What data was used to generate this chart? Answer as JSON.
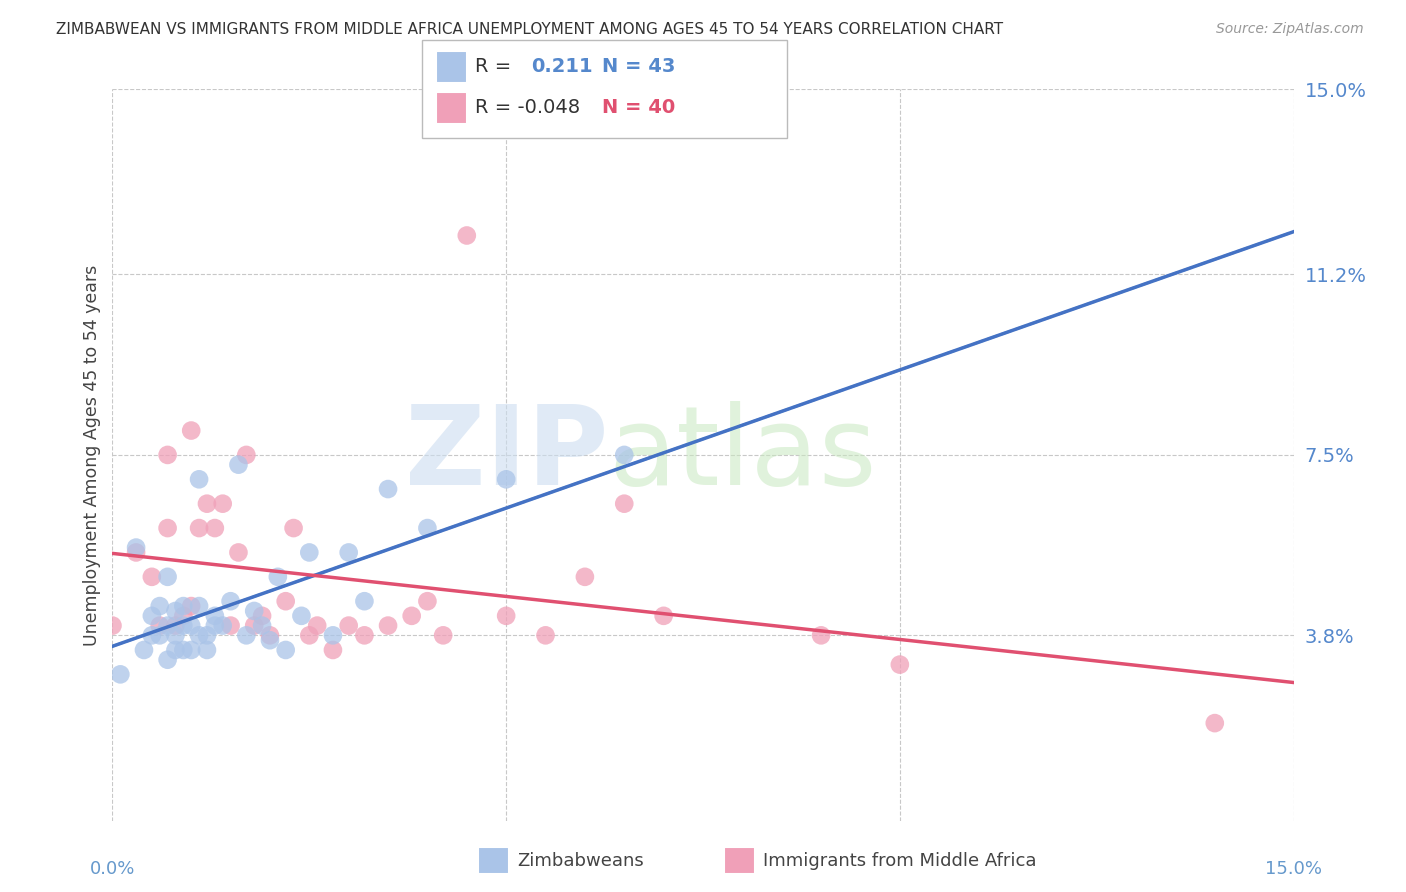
{
  "title": "ZIMBABWEAN VS IMMIGRANTS FROM MIDDLE AFRICA UNEMPLOYMENT AMONG AGES 45 TO 54 YEARS CORRELATION CHART",
  "source": "Source: ZipAtlas.com",
  "ylabel": "Unemployment Among Ages 45 to 54 years",
  "xlim": [
    0.0,
    0.15
  ],
  "ylim": [
    0.0,
    0.15
  ],
  "ytick_labels_right": [
    "15.0%",
    "11.2%",
    "7.5%",
    "3.8%"
  ],
  "ytick_positions_right": [
    0.15,
    0.112,
    0.075,
    0.038
  ],
  "grid_color": "#c8c8c8",
  "background_color": "#ffffff",
  "zim_color": "#aac4e8",
  "imm_color": "#f0a0b8",
  "zim_line_color": "#4472c4",
  "imm_line_color": "#e05070",
  "zim_R": 0.211,
  "zim_N": 43,
  "imm_R": -0.048,
  "imm_N": 40,
  "zimbabweans_x": [
    0.001,
    0.003,
    0.004,
    0.005,
    0.005,
    0.006,
    0.006,
    0.007,
    0.007,
    0.007,
    0.008,
    0.008,
    0.008,
    0.009,
    0.009,
    0.009,
    0.01,
    0.01,
    0.011,
    0.011,
    0.011,
    0.012,
    0.012,
    0.013,
    0.013,
    0.014,
    0.015,
    0.016,
    0.017,
    0.018,
    0.019,
    0.02,
    0.021,
    0.022,
    0.024,
    0.025,
    0.028,
    0.03,
    0.032,
    0.035,
    0.04,
    0.05,
    0.065
  ],
  "zimbabweans_y": [
    0.03,
    0.056,
    0.035,
    0.038,
    0.042,
    0.038,
    0.044,
    0.033,
    0.04,
    0.05,
    0.035,
    0.038,
    0.043,
    0.035,
    0.04,
    0.044,
    0.035,
    0.04,
    0.038,
    0.044,
    0.07,
    0.035,
    0.038,
    0.04,
    0.042,
    0.04,
    0.045,
    0.073,
    0.038,
    0.043,
    0.04,
    0.037,
    0.05,
    0.035,
    0.042,
    0.055,
    0.038,
    0.055,
    0.045,
    0.068,
    0.06,
    0.07,
    0.075
  ],
  "immigrants_x": [
    0.0,
    0.003,
    0.005,
    0.006,
    0.007,
    0.007,
    0.008,
    0.009,
    0.01,
    0.01,
    0.011,
    0.012,
    0.013,
    0.014,
    0.015,
    0.016,
    0.017,
    0.018,
    0.019,
    0.02,
    0.022,
    0.023,
    0.025,
    0.026,
    0.028,
    0.03,
    0.032,
    0.035,
    0.038,
    0.04,
    0.042,
    0.045,
    0.05,
    0.055,
    0.06,
    0.065,
    0.07,
    0.09,
    0.1,
    0.14
  ],
  "immigrants_y": [
    0.04,
    0.055,
    0.05,
    0.04,
    0.06,
    0.075,
    0.04,
    0.042,
    0.044,
    0.08,
    0.06,
    0.065,
    0.06,
    0.065,
    0.04,
    0.055,
    0.075,
    0.04,
    0.042,
    0.038,
    0.045,
    0.06,
    0.038,
    0.04,
    0.035,
    0.04,
    0.038,
    0.04,
    0.042,
    0.045,
    0.038,
    0.12,
    0.042,
    0.038,
    0.05,
    0.065,
    0.042,
    0.038,
    0.032,
    0.02
  ]
}
